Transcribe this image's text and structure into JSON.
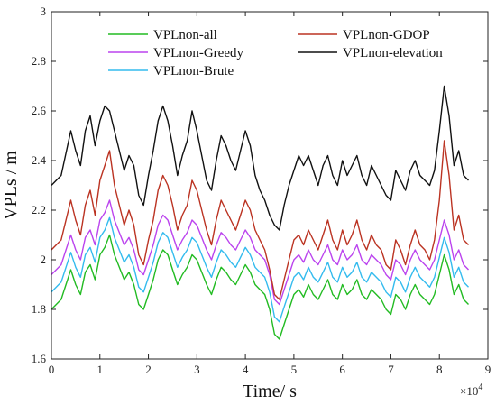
{
  "chart_data": {
    "type": "line",
    "xlabel": "Time/ s",
    "ylabel": "VPLs / m",
    "x_multiplier_label": "×10",
    "x_multiplier_exp": "4",
    "xlim": [
      0,
      9
    ],
    "ylim": [
      1.6,
      3.0
    ],
    "x_ticks": [
      "0",
      "1",
      "2",
      "3",
      "4",
      "5",
      "6",
      "7",
      "8",
      "9"
    ],
    "y_ticks": [
      "1.6",
      "1.8",
      "2",
      "2.2",
      "2.4",
      "2.6",
      "2.8",
      "3"
    ],
    "grid": false,
    "legend_placement": "top",
    "x": [
      0,
      0.2,
      0.4,
      0.5,
      0.6,
      0.7,
      0.8,
      0.9,
      1.0,
      1.1,
      1.2,
      1.3,
      1.4,
      1.5,
      1.6,
      1.7,
      1.8,
      1.9,
      2.0,
      2.1,
      2.2,
      2.3,
      2.4,
      2.5,
      2.6,
      2.7,
      2.8,
      2.9,
      3.0,
      3.1,
      3.2,
      3.3,
      3.4,
      3.5,
      3.6,
      3.7,
      3.8,
      3.9,
      4.0,
      4.1,
      4.2,
      4.3,
      4.4,
      4.5,
      4.6,
      4.7,
      4.8,
      4.9,
      5.0,
      5.1,
      5.2,
      5.3,
      5.4,
      5.5,
      5.6,
      5.7,
      5.8,
      5.9,
      6.0,
      6.1,
      6.2,
      6.3,
      6.4,
      6.5,
      6.6,
      6.7,
      6.8,
      6.9,
      7.0,
      7.1,
      7.2,
      7.3,
      7.4,
      7.5,
      7.6,
      7.7,
      7.8,
      7.9,
      8.0,
      8.1,
      8.2,
      8.3,
      8.4,
      8.5,
      8.6
    ],
    "series": [
      {
        "name": "VPLnon-all",
        "color": "#22bb22",
        "values": [
          1.8,
          1.84,
          1.96,
          1.9,
          1.86,
          1.95,
          1.98,
          1.92,
          2.02,
          2.05,
          2.1,
          2.02,
          1.97,
          1.92,
          1.95,
          1.9,
          1.82,
          1.8,
          1.86,
          1.92,
          2.0,
          2.04,
          2.02,
          1.96,
          1.9,
          1.94,
          1.97,
          2.02,
          2.0,
          1.95,
          1.9,
          1.86,
          1.92,
          1.97,
          1.95,
          1.92,
          1.9,
          1.94,
          1.98,
          1.95,
          1.9,
          1.88,
          1.86,
          1.8,
          1.7,
          1.68,
          1.74,
          1.8,
          1.86,
          1.88,
          1.85,
          1.9,
          1.86,
          1.84,
          1.88,
          1.92,
          1.86,
          1.84,
          1.9,
          1.86,
          1.88,
          1.92,
          1.86,
          1.84,
          1.88,
          1.86,
          1.84,
          1.8,
          1.78,
          1.86,
          1.84,
          1.8,
          1.86,
          1.9,
          1.86,
          1.84,
          1.82,
          1.86,
          1.94,
          2.02,
          1.96,
          1.86,
          1.9,
          1.84,
          1.82
        ]
      },
      {
        "name": "VPLnon-Greedy",
        "color": "#bb44ee",
        "values": [
          1.94,
          1.98,
          2.1,
          2.04,
          2.0,
          2.09,
          2.12,
          2.06,
          2.16,
          2.19,
          2.24,
          2.16,
          2.11,
          2.06,
          2.09,
          2.04,
          1.96,
          1.94,
          2.0,
          2.06,
          2.14,
          2.18,
          2.16,
          2.1,
          2.04,
          2.08,
          2.11,
          2.16,
          2.14,
          2.09,
          2.04,
          2.0,
          2.06,
          2.11,
          2.09,
          2.06,
          2.04,
          2.08,
          2.12,
          2.09,
          2.04,
          2.02,
          2.0,
          1.94,
          1.84,
          1.82,
          1.88,
          1.94,
          2.0,
          2.02,
          1.99,
          2.04,
          2.0,
          1.98,
          2.02,
          2.06,
          2.0,
          1.98,
          2.04,
          2.0,
          2.02,
          2.06,
          2.0,
          1.98,
          2.02,
          2.0,
          1.98,
          1.94,
          1.92,
          2.0,
          1.98,
          1.94,
          2.0,
          2.04,
          2.0,
          1.98,
          1.96,
          2.0,
          2.08,
          2.16,
          2.1,
          2.0,
          2.04,
          1.98,
          1.96
        ]
      },
      {
        "name": "VPLnon-Brute",
        "color": "#33bbee",
        "values": [
          1.87,
          1.91,
          2.03,
          1.97,
          1.93,
          2.02,
          2.05,
          1.99,
          2.09,
          2.12,
          2.17,
          2.09,
          2.04,
          1.99,
          2.02,
          1.97,
          1.89,
          1.87,
          1.93,
          1.99,
          2.07,
          2.11,
          2.09,
          2.03,
          1.97,
          2.01,
          2.04,
          2.09,
          2.07,
          2.02,
          1.97,
          1.93,
          1.99,
          2.04,
          2.02,
          1.99,
          1.97,
          2.01,
          2.05,
          2.02,
          1.97,
          1.95,
          1.93,
          1.87,
          1.77,
          1.75,
          1.81,
          1.87,
          1.93,
          1.95,
          1.92,
          1.97,
          1.93,
          1.91,
          1.95,
          1.99,
          1.93,
          1.91,
          1.97,
          1.93,
          1.95,
          1.99,
          1.93,
          1.91,
          1.95,
          1.93,
          1.91,
          1.87,
          1.85,
          1.93,
          1.91,
          1.87,
          1.93,
          1.97,
          1.93,
          1.91,
          1.89,
          1.93,
          2.01,
          2.09,
          2.03,
          1.93,
          1.97,
          1.91,
          1.89
        ]
      },
      {
        "name": "VPLnon-GDOP",
        "color": "#bb3322",
        "values": [
          2.04,
          2.08,
          2.24,
          2.16,
          2.1,
          2.22,
          2.28,
          2.18,
          2.32,
          2.38,
          2.44,
          2.3,
          2.22,
          2.14,
          2.2,
          2.14,
          2.02,
          1.98,
          2.08,
          2.16,
          2.28,
          2.34,
          2.3,
          2.22,
          2.12,
          2.18,
          2.22,
          2.32,
          2.28,
          2.2,
          2.12,
          2.06,
          2.16,
          2.24,
          2.2,
          2.16,
          2.12,
          2.18,
          2.24,
          2.2,
          2.12,
          2.08,
          2.04,
          1.96,
          1.86,
          1.84,
          1.92,
          2.0,
          2.08,
          2.1,
          2.06,
          2.12,
          2.08,
          2.04,
          2.1,
          2.16,
          2.08,
          2.04,
          2.12,
          2.06,
          2.1,
          2.16,
          2.08,
          2.04,
          2.1,
          2.06,
          2.04,
          1.98,
          1.96,
          2.08,
          2.04,
          1.98,
          2.06,
          2.12,
          2.06,
          2.04,
          2.0,
          2.08,
          2.24,
          2.48,
          2.34,
          2.12,
          2.18,
          2.08,
          2.06
        ]
      },
      {
        "name": "VPLnon-elevation",
        "color": "#111111",
        "values": [
          2.3,
          2.34,
          2.52,
          2.44,
          2.38,
          2.52,
          2.58,
          2.46,
          2.56,
          2.62,
          2.6,
          2.52,
          2.44,
          2.36,
          2.42,
          2.38,
          2.26,
          2.22,
          2.34,
          2.44,
          2.56,
          2.62,
          2.56,
          2.46,
          2.34,
          2.42,
          2.48,
          2.6,
          2.52,
          2.42,
          2.32,
          2.28,
          2.4,
          2.5,
          2.46,
          2.4,
          2.36,
          2.44,
          2.52,
          2.46,
          2.34,
          2.28,
          2.24,
          2.18,
          2.14,
          2.12,
          2.22,
          2.3,
          2.36,
          2.42,
          2.38,
          2.42,
          2.36,
          2.3,
          2.38,
          2.42,
          2.34,
          2.3,
          2.4,
          2.34,
          2.38,
          2.42,
          2.34,
          2.3,
          2.38,
          2.34,
          2.3,
          2.26,
          2.24,
          2.36,
          2.32,
          2.28,
          2.36,
          2.4,
          2.34,
          2.32,
          2.3,
          2.36,
          2.52,
          2.7,
          2.58,
          2.38,
          2.44,
          2.34,
          2.32
        ]
      }
    ]
  }
}
